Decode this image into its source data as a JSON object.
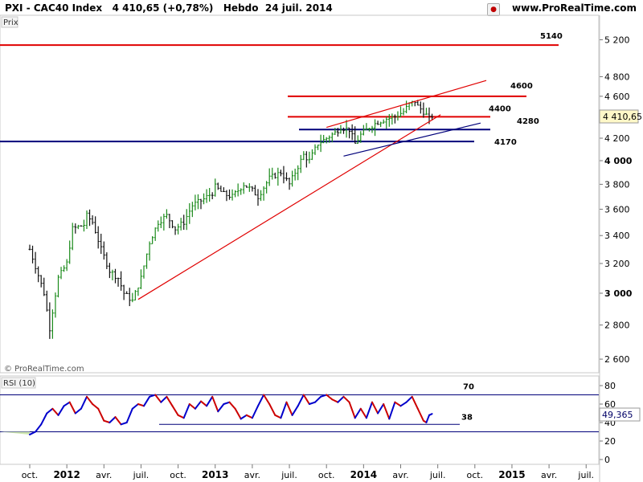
{
  "header": {
    "title": "PXI - CAC40 Index",
    "last": "4 410,65 (+0,78%)",
    "period": "Hebdo",
    "date": "24 juil. 2014",
    "site": "www.ProRealTime.com"
  },
  "price_panel": {
    "label": "Prix",
    "watermark": "© ProRealTime.com",
    "current_badge": "4 410,65",
    "y_ticks": [
      "2 600",
      "2 800",
      "3 000",
      "3 200",
      "3 400",
      "3 600",
      "3 800",
      "4 000",
      "4 200",
      "4 400",
      "4 600",
      "4 800",
      "5 200"
    ],
    "levels": [
      {
        "label": "5140",
        "value": 5140,
        "color": "#e00000"
      },
      {
        "label": "4600",
        "value": 4600,
        "color": "#e00000"
      },
      {
        "label": "4400",
        "value": 4400,
        "color": "#e00000"
      },
      {
        "label": "4280",
        "value": 4280,
        "color": "#00007a"
      },
      {
        "label": "4170",
        "value": 4170,
        "color": "#00007a"
      }
    ]
  },
  "rsi_panel": {
    "label": "RSI (10)",
    "current_badge": "49,365",
    "y_ticks": [
      "0",
      "20",
      "40",
      "60",
      "80"
    ],
    "levels": [
      {
        "label": "70",
        "value": 70,
        "color": "#00007a"
      },
      {
        "label": "38",
        "value": 38,
        "color": "#00007a"
      },
      {
        "label": "",
        "value": 30,
        "color": "#00007a"
      }
    ]
  },
  "x_axis": {
    "ticks": [
      {
        "label": "oct.",
        "t": 0,
        "bold": false
      },
      {
        "label": "2012",
        "t": 13,
        "bold": true
      },
      {
        "label": "avr.",
        "t": 26,
        "bold": false
      },
      {
        "label": "juil.",
        "t": 39,
        "bold": false
      },
      {
        "label": "oct.",
        "t": 52,
        "bold": false
      },
      {
        "label": "2013",
        "t": 65,
        "bold": true
      },
      {
        "label": "avr.",
        "t": 78,
        "bold": false
      },
      {
        "label": "juil.",
        "t": 91,
        "bold": false
      },
      {
        "label": "oct.",
        "t": 104,
        "bold": false
      },
      {
        "label": "2014",
        "t": 117,
        "bold": true
      },
      {
        "label": "avr.",
        "t": 130,
        "bold": false
      },
      {
        "label": "juil.",
        "t": 143,
        "bold": false
      },
      {
        "label": "oct.",
        "t": 156,
        "bold": false
      },
      {
        "label": "2015",
        "t": 169,
        "bold": true
      },
      {
        "label": "avr.",
        "t": 182,
        "bold": false
      },
      {
        "label": "juil.",
        "t": 195,
        "bold": false
      }
    ]
  },
  "chart_data": [
    {
      "type": "ohlc",
      "title": "PXI - CAC40 Index",
      "ylabel": "Prix",
      "y_scale": "log",
      "ylim": [
        2520,
        5400
      ],
      "x_unit": "weeks since first visible bar",
      "grid": false,
      "close_path": [
        [
          0,
          3300
        ],
        [
          5,
          3000
        ],
        [
          7,
          2780
        ],
        [
          10,
          3100
        ],
        [
          13,
          3200
        ],
        [
          15,
          3450
        ],
        [
          19,
          3480
        ],
        [
          20,
          3550
        ],
        [
          22,
          3500
        ],
        [
          25,
          3300
        ],
        [
          28,
          3150
        ],
        [
          31,
          3100
        ],
        [
          33,
          3000
        ],
        [
          36,
          2950
        ],
        [
          39,
          3100
        ],
        [
          42,
          3350
        ],
        [
          45,
          3500
        ],
        [
          48,
          3550
        ],
        [
          51,
          3450
        ],
        [
          54,
          3500
        ],
        [
          57,
          3630
        ],
        [
          61,
          3680
        ],
        [
          64,
          3730
        ],
        [
          65,
          3780
        ],
        [
          68,
          3720
        ],
        [
          71,
          3700
        ],
        [
          75,
          3800
        ],
        [
          78,
          3750
        ],
        [
          80,
          3700
        ],
        [
          84,
          3850
        ],
        [
          88,
          3900
        ],
        [
          91,
          3800
        ],
        [
          93,
          3900
        ],
        [
          96,
          4050
        ],
        [
          98,
          4000
        ],
        [
          101,
          4150
        ],
        [
          104,
          4200
        ],
        [
          107,
          4250
        ],
        [
          109,
          4300
        ],
        [
          112,
          4280
        ],
        [
          114,
          4150
        ],
        [
          116,
          4230
        ],
        [
          119,
          4300
        ],
        [
          122,
          4350
        ],
        [
          125,
          4380
        ],
        [
          128,
          4400
        ],
        [
          131,
          4450
        ],
        [
          133,
          4520
        ],
        [
          135,
          4550
        ],
        [
          136,
          4500
        ],
        [
          138,
          4450
        ],
        [
          140,
          4380
        ],
        [
          141,
          4410
        ]
      ],
      "trendlines": [
        {
          "name": "support",
          "color": "#e00000",
          "from": [
            38,
            2960
          ],
          "to": [
            144,
            4420
          ]
        },
        {
          "name": "channel-top",
          "color": "#e00000",
          "from": [
            104,
            4300
          ],
          "to": [
            160,
            4760
          ]
        },
        {
          "name": "channel-base",
          "color": "#00007a",
          "from": [
            110,
            4040
          ],
          "to": [
            158,
            4340
          ]
        }
      ],
      "last": 4410.65
    },
    {
      "type": "line",
      "title": "RSI (10)",
      "ylim": [
        0,
        85
      ],
      "upper": 70,
      "lower": 30,
      "series_color_up": "#0000cc",
      "series_color_down": "#cc0000",
      "path": [
        [
          0,
          27
        ],
        [
          2,
          30
        ],
        [
          4,
          38
        ],
        [
          6,
          50
        ],
        [
          8,
          55
        ],
        [
          10,
          48
        ],
        [
          12,
          58
        ],
        [
          14,
          62
        ],
        [
          16,
          50
        ],
        [
          18,
          55
        ],
        [
          20,
          68
        ],
        [
          22,
          60
        ],
        [
          24,
          55
        ],
        [
          26,
          42
        ],
        [
          28,
          40
        ],
        [
          30,
          46
        ],
        [
          32,
          38
        ],
        [
          34,
          40
        ],
        [
          36,
          55
        ],
        [
          38,
          60
        ],
        [
          40,
          58
        ],
        [
          42,
          68
        ],
        [
          44,
          70
        ],
        [
          46,
          62
        ],
        [
          48,
          68
        ],
        [
          50,
          58
        ],
        [
          52,
          48
        ],
        [
          54,
          45
        ],
        [
          56,
          60
        ],
        [
          58,
          55
        ],
        [
          60,
          63
        ],
        [
          62,
          58
        ],
        [
          64,
          68
        ],
        [
          66,
          52
        ],
        [
          68,
          60
        ],
        [
          70,
          62
        ],
        [
          72,
          55
        ],
        [
          74,
          44
        ],
        [
          76,
          48
        ],
        [
          78,
          45
        ],
        [
          80,
          58
        ],
        [
          82,
          70
        ],
        [
          84,
          60
        ],
        [
          86,
          48
        ],
        [
          88,
          45
        ],
        [
          90,
          62
        ],
        [
          92,
          48
        ],
        [
          94,
          58
        ],
        [
          96,
          70
        ],
        [
          98,
          60
        ],
        [
          100,
          62
        ],
        [
          102,
          68
        ],
        [
          104,
          70
        ],
        [
          106,
          65
        ],
        [
          108,
          62
        ],
        [
          110,
          68
        ],
        [
          112,
          62
        ],
        [
          114,
          45
        ],
        [
          116,
          55
        ],
        [
          118,
          45
        ],
        [
          120,
          62
        ],
        [
          122,
          50
        ],
        [
          124,
          60
        ],
        [
          126,
          44
        ],
        [
          128,
          62
        ],
        [
          130,
          58
        ],
        [
          132,
          62
        ],
        [
          134,
          68
        ],
        [
          136,
          55
        ],
        [
          138,
          42
        ],
        [
          139,
          40
        ],
        [
          140,
          48
        ],
        [
          141,
          49.4
        ]
      ],
      "last": 49.365
    }
  ]
}
